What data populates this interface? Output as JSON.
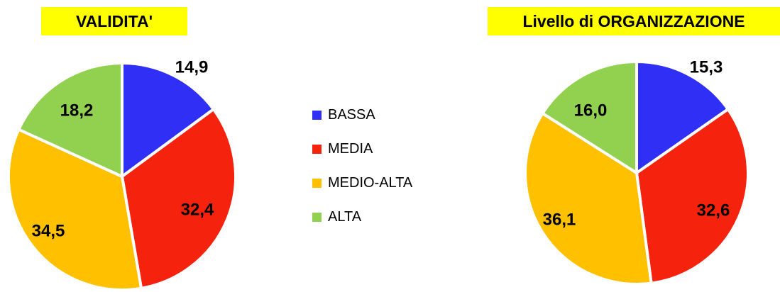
{
  "chart_data": [
    {
      "type": "pie",
      "title": "VALIDITA'",
      "categories": [
        "BASSA",
        "MEDIA",
        "MEDIO-ALTA",
        "ALTA"
      ],
      "values": [
        14.9,
        32.4,
        34.5,
        18.2
      ],
      "labels": [
        "14,9",
        "32,4",
        "34,5",
        "18,2"
      ],
      "colors": [
        "#2f2ff5",
        "#f5230e",
        "#ffc000",
        "#92d050"
      ],
      "legend": "center"
    },
    {
      "type": "pie",
      "title": "Livello di ORGANIZZAZIONE",
      "categories": [
        "BASSA",
        "MEDIA",
        "MEDIO-ALTA",
        "ALTA"
      ],
      "values": [
        15.3,
        32.6,
        36.1,
        16.0
      ],
      "labels": [
        "15,3",
        "32,6",
        "36,1",
        "16,0"
      ],
      "colors": [
        "#2f2ff5",
        "#f5230e",
        "#ffc000",
        "#92d050"
      ],
      "legend": "center"
    }
  ],
  "legend": {
    "items": [
      {
        "label": "BASSA",
        "color": "#2f2ff5"
      },
      {
        "label": "MEDIA",
        "color": "#f5230e"
      },
      {
        "label": "MEDIO-ALTA",
        "color": "#ffc000"
      },
      {
        "label": "ALTA",
        "color": "#92d050"
      }
    ]
  }
}
